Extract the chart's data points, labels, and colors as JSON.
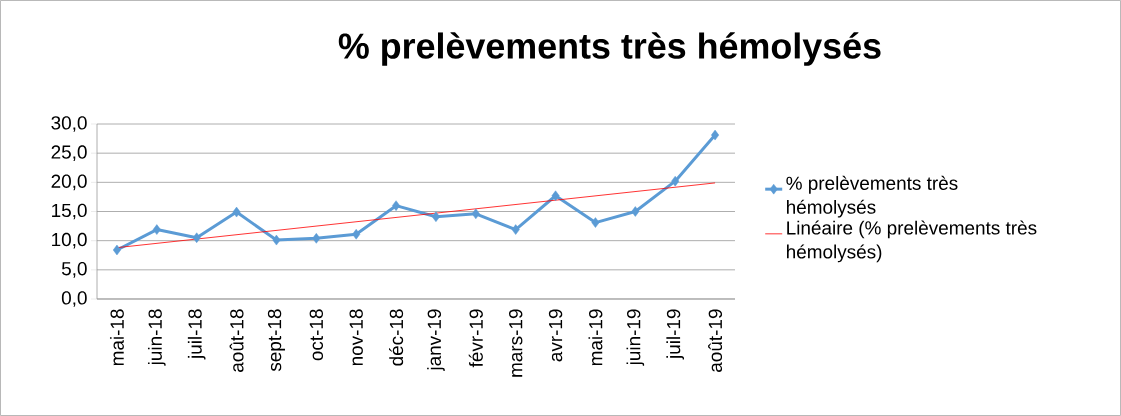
{
  "chart_data": {
    "type": "line",
    "title": "% prelèvements très hémolysés",
    "categories": [
      "mai-18",
      "juin-18",
      "juil-18",
      "août-18",
      "sept-18",
      "oct-18",
      "nov-18",
      "déc-18",
      "janv-19",
      "févr-19",
      "mars-19",
      "avr-19",
      "mai-19",
      "juin-19",
      "juil-19",
      "août-19"
    ],
    "series": [
      {
        "name": "% prelèvements très hémolysés",
        "color": "#5b9bd5",
        "marker": "diamond",
        "values": [
          8.4,
          11.9,
          10.5,
          14.9,
          10.1,
          10.4,
          11.1,
          16.0,
          14.1,
          14.6,
          11.9,
          17.7,
          13.1,
          15.0,
          20.2,
          28.1
        ]
      },
      {
        "name": "Linéaire (% prelèvements très hémolysés)",
        "type": "line",
        "color": "#ff0000",
        "marker": "none",
        "x": [
          "mai-18",
          "août-19"
        ],
        "values": [
          8.8,
          19.9
        ]
      }
    ],
    "ylim": [
      0,
      30
    ],
    "yticks": [
      {
        "value": 0,
        "label": "0,0"
      },
      {
        "value": 5,
        "label": "5,0"
      },
      {
        "value": 10,
        "label": "10,0"
      },
      {
        "value": 15,
        "label": "15,0"
      },
      {
        "value": 20,
        "label": "20,0"
      },
      {
        "value": 25,
        "label": "25,0"
      },
      {
        "value": 30,
        "label": "30,0"
      }
    ],
    "grid": "y",
    "legend": "right"
  }
}
